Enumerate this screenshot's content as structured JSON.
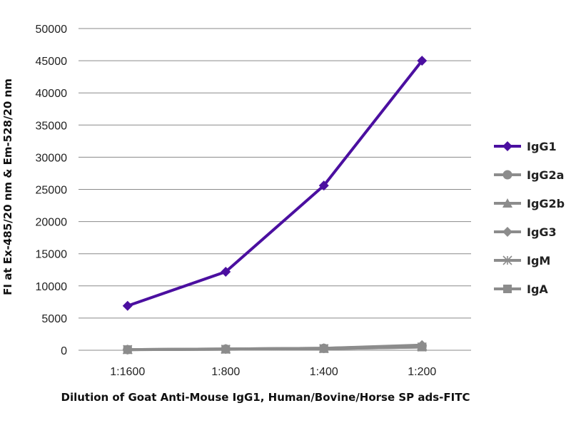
{
  "chart_data": {
    "type": "line",
    "title": "",
    "categories": [
      "1:1600",
      "1:800",
      "1:400",
      "1:200"
    ],
    "xlabel": "Dilution of Goat Anti-Mouse IgG1, Human/Bovine/Horse SP ads-FITC",
    "ylabel": "FI at Ex-485/20 nm & Em-528/20 nm",
    "ylim": [
      0,
      50000
    ],
    "yticks": [
      0,
      5000,
      10000,
      15000,
      20000,
      25000,
      30000,
      35000,
      40000,
      45000,
      50000
    ],
    "grid": "horizontal",
    "legend_position": "right",
    "series": [
      {
        "name": "IgG1",
        "color": "#4b0fa0",
        "marker": "diamond",
        "values": [
          6900,
          12200,
          25600,
          45000
        ]
      },
      {
        "name": "IgG2a",
        "color": "#8c8c8c",
        "marker": "circle",
        "values": [
          100,
          200,
          300,
          600
        ]
      },
      {
        "name": "IgG2b",
        "color": "#8c8c8c",
        "marker": "triangle",
        "values": [
          100,
          200,
          300,
          700
        ]
      },
      {
        "name": "IgG3",
        "color": "#8c8c8c",
        "marker": "diamond",
        "values": [
          100,
          200,
          300,
          800
        ]
      },
      {
        "name": "IgM",
        "color": "#8c8c8c",
        "marker": "star",
        "values": [
          100,
          150,
          250,
          500
        ]
      },
      {
        "name": "IgA",
        "color": "#8c8c8c",
        "marker": "square",
        "values": [
          100,
          150,
          250,
          500
        ]
      }
    ]
  }
}
